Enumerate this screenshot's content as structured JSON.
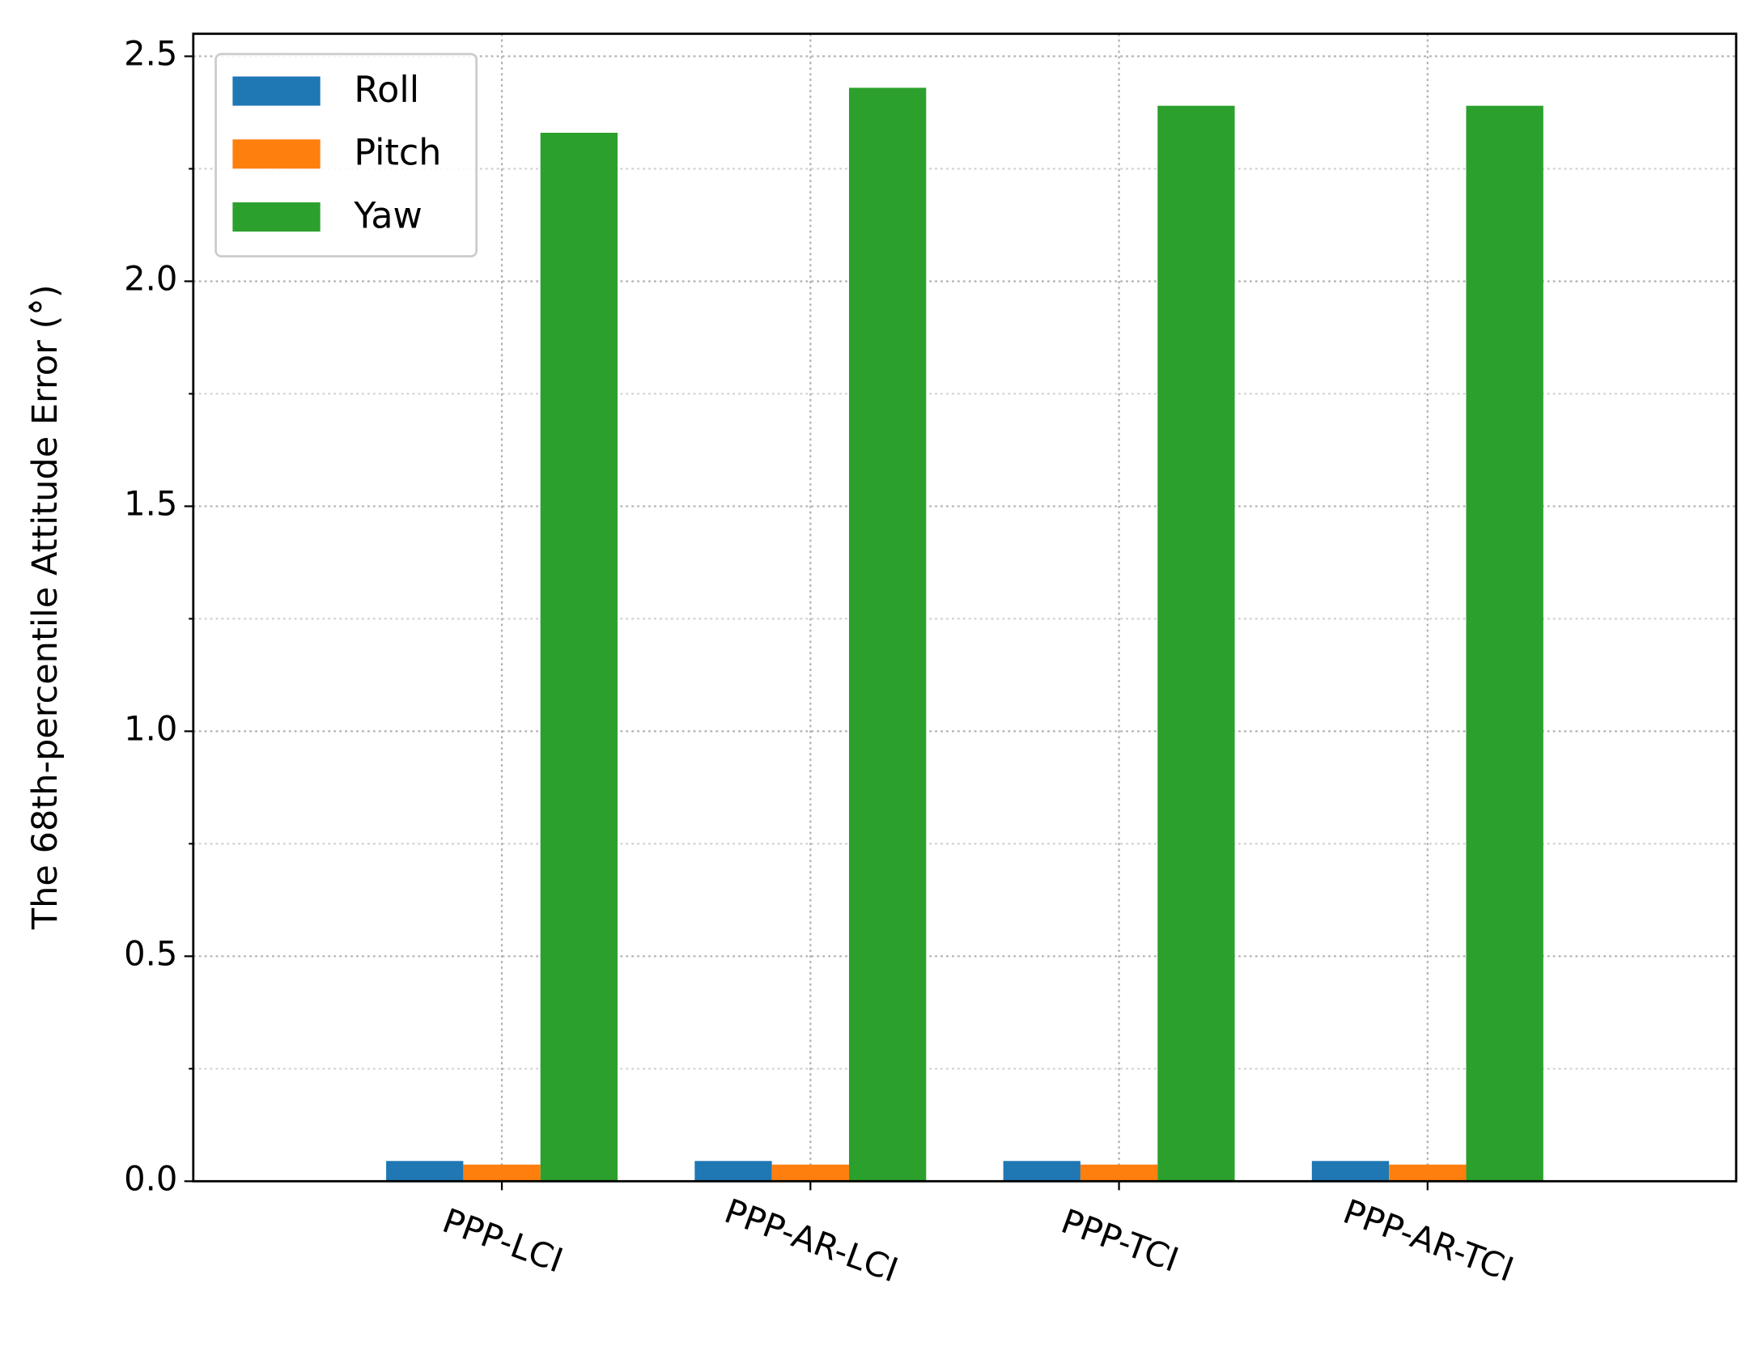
{
  "chart_data": {
    "type": "bar",
    "ylabel": "The 68th-percentile Attitude Error (°̂)",
    "categories": [
      "PPP-LCI",
      "PPP-AR-LCI",
      "PPP-TCI",
      "PPP-AR-TCI"
    ],
    "series": [
      {
        "name": "Roll",
        "color": "#1f77b4",
        "values": [
          0.045,
          0.045,
          0.045,
          0.045
        ]
      },
      {
        "name": "Pitch",
        "color": "#ff7f0e",
        "values": [
          0.037,
          0.037,
          0.037,
          0.037
        ]
      },
      {
        "name": "Yaw",
        "color": "#2ca02c",
        "values": [
          2.33,
          2.43,
          2.39,
          2.39
        ]
      }
    ],
    "ylim": [
      0,
      2.55
    ],
    "yticks": [
      {
        "value": 0,
        "label": "0.0"
      },
      0.5,
      {
        "value": 1,
        "label": "1.0"
      },
      1.5,
      {
        "value": 2,
        "label": "2.0"
      },
      2.5
    ],
    "yminor_ticks": [
      0.25,
      0.75,
      1.25,
      1.75,
      2.25
    ],
    "grid": true,
    "legend": "upper left"
  }
}
